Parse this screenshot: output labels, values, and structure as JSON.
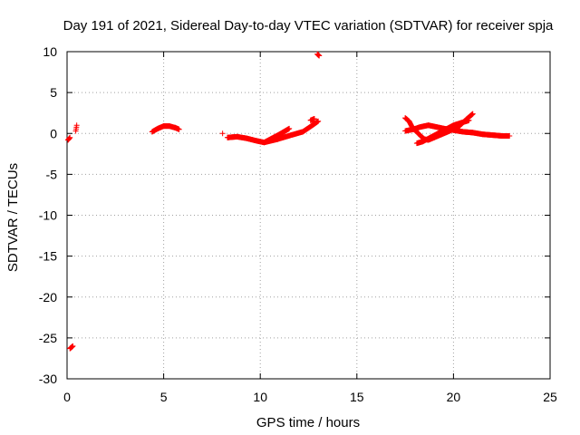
{
  "chart_data": {
    "type": "scatter",
    "title": "Day 191 of 2021, Sidereal Day-to-day VTEC variation (SDTVAR) for receiver spja",
    "xlabel": "GPS time / hours",
    "ylabel": "SDTVAR / TECUs",
    "xlim": [
      0,
      25
    ],
    "ylim": [
      -30,
      10
    ],
    "xticks": [
      0,
      5,
      10,
      15,
      20,
      25
    ],
    "yticks": [
      10,
      5,
      0,
      -5,
      -10,
      -15,
      -20,
      -25,
      -30
    ],
    "grid": true,
    "marker": "+",
    "color": "#ff0000",
    "series": [
      {
        "name": "SDTVAR",
        "segments": [
          {
            "points": [
              [
                0.05,
                -0.8
              ],
              [
                0.15,
                -0.5
              ]
            ]
          },
          {
            "points": [
              [
                0.45,
                0.3
              ],
              [
                0.5,
                1.0
              ]
            ]
          },
          {
            "points": [
              [
                0.15,
                -26.3
              ],
              [
                0.3,
                -26.0
              ]
            ]
          },
          {
            "points": [
              [
                4.4,
                0.2
              ],
              [
                4.7,
                0.6
              ],
              [
                5.0,
                0.9
              ],
              [
                5.3,
                0.9
              ],
              [
                5.6,
                0.7
              ],
              [
                5.8,
                0.5
              ]
            ]
          },
          {
            "points": [
              [
                8.05,
                0.0
              ]
            ]
          },
          {
            "points": [
              [
                8.3,
                -0.5
              ],
              [
                8.8,
                -0.4
              ],
              [
                9.3,
                -0.6
              ],
              [
                9.8,
                -0.9
              ],
              [
                10.2,
                -1.1
              ],
              [
                10.6,
                -0.6
              ],
              [
                11.0,
                -0.1
              ],
              [
                11.5,
                0.6
              ]
            ]
          },
          {
            "points": [
              [
                10.2,
                -1.1
              ],
              [
                10.9,
                -0.7
              ],
              [
                11.6,
                -0.2
              ],
              [
                12.2,
                0.2
              ],
              [
                12.7,
                1.0
              ],
              [
                13.0,
                1.5
              ]
            ]
          },
          {
            "points": [
              [
                12.6,
                1.6
              ],
              [
                12.8,
                1.8
              ]
            ]
          },
          {
            "points": [
              [
                12.95,
                9.7
              ],
              [
                13.05,
                9.5
              ]
            ]
          },
          {
            "points": [
              [
                17.5,
                1.9
              ],
              [
                17.7,
                1.5
              ],
              [
                17.9,
                0.6
              ],
              [
                18.1,
                0.2
              ],
              [
                18.3,
                -0.3
              ],
              [
                18.5,
                -0.7
              ],
              [
                18.7,
                -0.8
              ],
              [
                19.0,
                -0.5
              ],
              [
                19.4,
                -0.1
              ],
              [
                19.8,
                0.3
              ],
              [
                20.3,
                0.9
              ],
              [
                20.7,
                1.8
              ],
              [
                21.0,
                2.4
              ]
            ]
          },
          {
            "points": [
              [
                17.5,
                0.3
              ],
              [
                17.9,
                0.5
              ],
              [
                18.3,
                0.8
              ],
              [
                18.7,
                1.0
              ],
              [
                19.1,
                0.8
              ],
              [
                19.5,
                0.6
              ],
              [
                20.0,
                0.4
              ],
              [
                20.5,
                0.2
              ],
              [
                21.0,
                0.1
              ],
              [
                21.5,
                -0.1
              ],
              [
                22.0,
                -0.2
              ],
              [
                22.5,
                -0.3
              ],
              [
                22.9,
                -0.3
              ]
            ]
          },
          {
            "points": [
              [
                18.1,
                -1.2
              ],
              [
                18.4,
                -1.0
              ],
              [
                18.8,
                -0.5
              ],
              [
                19.2,
                0.0
              ],
              [
                19.6,
                0.5
              ],
              [
                20.0,
                1.0
              ],
              [
                20.4,
                1.3
              ],
              [
                20.8,
                1.6
              ]
            ]
          }
        ]
      }
    ]
  }
}
